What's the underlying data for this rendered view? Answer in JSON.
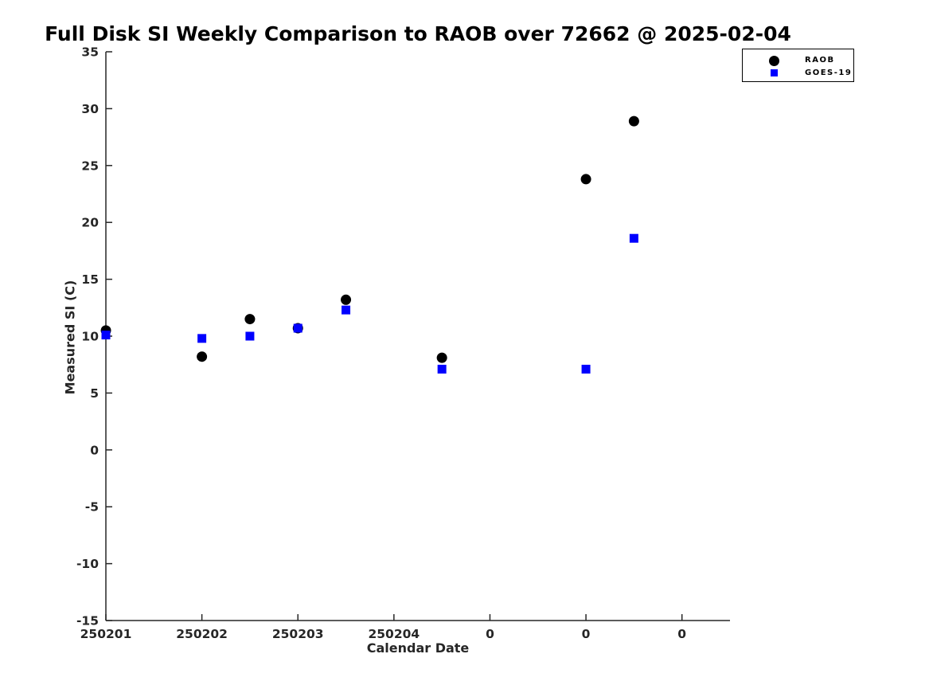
{
  "figure": {
    "title": "Full Disk SI Weekly Comparison to RAOB over 72662 @ 2025-02-04",
    "xlabel": "Calendar Date",
    "ylabel": "Measured SI (C)"
  },
  "legend": {
    "items": [
      {
        "label": "RAOB",
        "marker": "circle",
        "color": "#000000"
      },
      {
        "label": "GOES-19",
        "marker": "square",
        "color": "#0000ff"
      }
    ],
    "position": "top-right-outside"
  },
  "chart_data": {
    "type": "scatter",
    "title": "Full Disk SI Weekly Comparison to RAOB over 72662 @ 2025-02-04",
    "xlabel": "Calendar Date",
    "ylabel": "Measured SI (C)",
    "xlim": [
      0,
      6.5
    ],
    "ylim": [
      -15,
      35
    ],
    "grid": false,
    "axis_color": "#262626",
    "x_ticks": [
      0,
      1,
      2,
      3,
      4,
      5,
      6
    ],
    "x_tick_labels": [
      "250201",
      "250202",
      "250203",
      "250204",
      "0",
      "0",
      "0"
    ],
    "y_ticks": [
      -15,
      -10,
      -5,
      0,
      5,
      10,
      15,
      20,
      25,
      30,
      35
    ],
    "y_tick_labels": [
      "-15",
      "-10",
      "-5",
      "0",
      "5",
      "10",
      "15",
      "20",
      "25",
      "30",
      "35"
    ],
    "series": [
      {
        "name": "RAOB",
        "marker": "circle",
        "color": "#000000",
        "points": [
          {
            "x": 0.0,
            "y": 10.5
          },
          {
            "x": 1.0,
            "y": 8.2
          },
          {
            "x": 1.5,
            "y": 11.5
          },
          {
            "x": 2.0,
            "y": 10.7
          },
          {
            "x": 2.5,
            "y": 13.2
          },
          {
            "x": 3.5,
            "y": 8.1
          },
          {
            "x": 5.0,
            "y": 23.8
          },
          {
            "x": 5.5,
            "y": 28.9
          }
        ]
      },
      {
        "name": "GOES-19",
        "marker": "square",
        "color": "#0000ff",
        "points": [
          {
            "x": 0.0,
            "y": 10.1
          },
          {
            "x": 1.0,
            "y": 9.8
          },
          {
            "x": 1.5,
            "y": 10.0
          },
          {
            "x": 2.0,
            "y": 10.7
          },
          {
            "x": 2.5,
            "y": 12.3
          },
          {
            "x": 3.5,
            "y": 7.1
          },
          {
            "x": 5.0,
            "y": 7.1
          },
          {
            "x": 5.5,
            "y": 18.6
          }
        ]
      }
    ]
  }
}
